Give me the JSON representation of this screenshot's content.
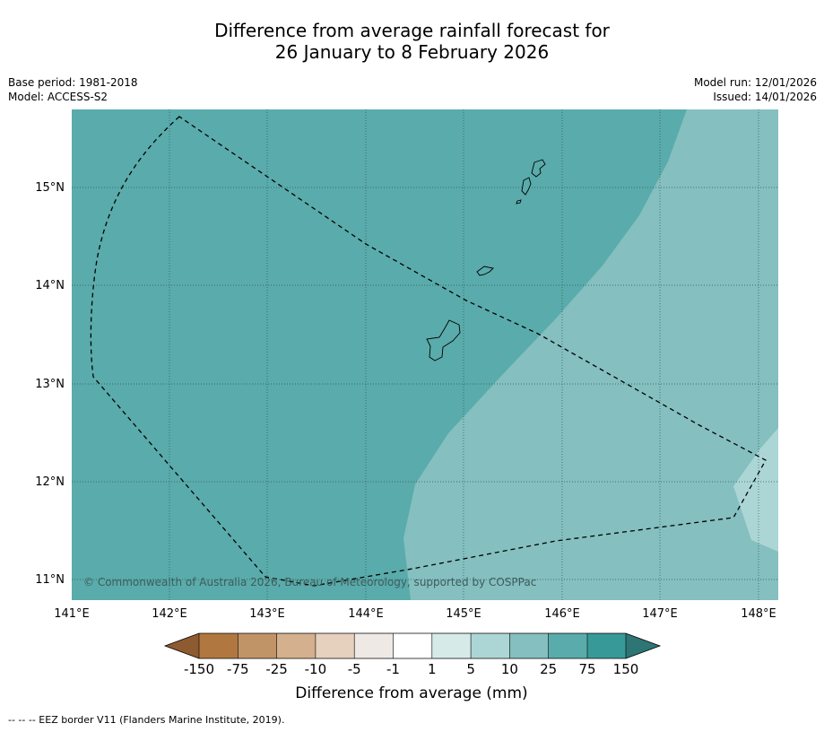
{
  "title": {
    "line1": "Difference from average rainfall forecast for",
    "line2": "26 January to 8 February 2026"
  },
  "meta": {
    "base_period": "Base period: 1981-2018",
    "model": "Model: ACCESS-S2",
    "model_run": "Model run: 12/01/2026",
    "issued": "Issued: 14/01/2026"
  },
  "map": {
    "lon_labels": [
      "141°E",
      "142°E",
      "143°E",
      "144°E",
      "145°E",
      "146°E",
      "147°E",
      "148°E"
    ],
    "lat_labels": [
      "15°N",
      "14°N",
      "13°N",
      "12°N",
      "11°N"
    ],
    "copyright": "© Commonwealth of Australia 2026, Bureau of Meteorology, supported by COSPPac"
  },
  "legend": {
    "tick_labels": [
      "-150",
      "-75",
      "-25",
      "-10",
      "-5",
      "-1",
      "1",
      "5",
      "10",
      "25",
      "75",
      "150"
    ],
    "colors": [
      "#8e5a30",
      "#b07840",
      "#c19468",
      "#d4b08e",
      "#e6d0be",
      "#efe9e6",
      "#ffffff",
      "#d6eae8",
      "#acd6d5",
      "#85bfbf",
      "#5aabab",
      "#379a98",
      "#2e7575"
    ],
    "label": "Difference from average (mm)"
  },
  "footnote": "--  --  -- EEZ border V11 (Flanders Marine Institute, 2019)."
}
